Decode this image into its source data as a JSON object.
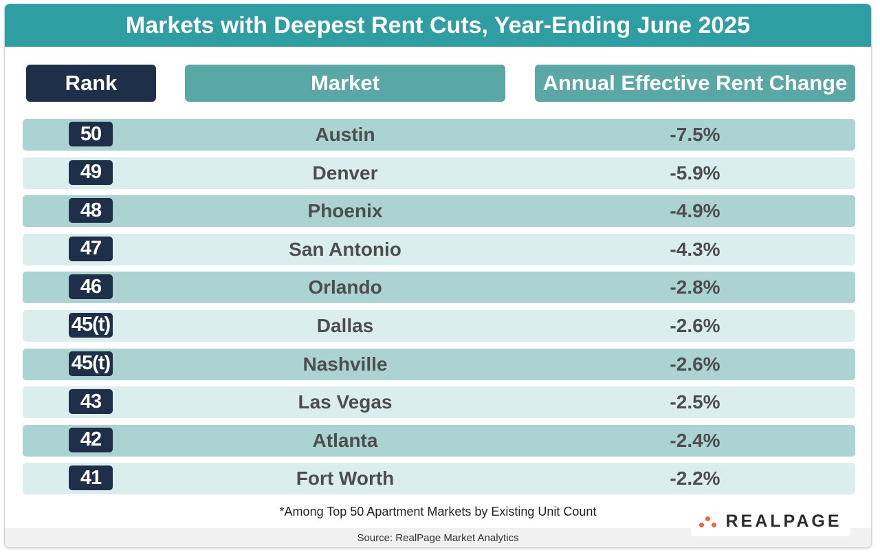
{
  "title": "Markets with Deepest Rent Cuts, Year-Ending June 2025",
  "headers": {
    "rank": "Rank",
    "market": "Market",
    "change": "Annual Effective Rent Change"
  },
  "chart_data": {
    "type": "table",
    "title": "Markets with Deepest Rent Cuts, Year-Ending June 2025",
    "columns": [
      "Rank",
      "Market",
      "Annual Effective Rent Change"
    ],
    "rows": [
      {
        "rank": "50",
        "market": "Austin",
        "change": "-7.5%"
      },
      {
        "rank": "49",
        "market": "Denver",
        "change": "-5.9%"
      },
      {
        "rank": "48",
        "market": "Phoenix",
        "change": "-4.9%"
      },
      {
        "rank": "47",
        "market": "San Antonio",
        "change": "-4.3%"
      },
      {
        "rank": "46",
        "market": "Orlando",
        "change": "-2.8%"
      },
      {
        "rank": "45(t)",
        "market": "Dallas",
        "change": "-2.6%"
      },
      {
        "rank": "45(t)",
        "market": "Nashville",
        "change": "-2.6%"
      },
      {
        "rank": "43",
        "market": "Las Vegas",
        "change": "-2.5%"
      },
      {
        "rank": "42",
        "market": "Atlanta",
        "change": "-2.4%"
      },
      {
        "rank": "41",
        "market": "Fort Worth",
        "change": "-2.2%"
      }
    ]
  },
  "footnote": "*Among Top 50 Apartment Markets by Existing Unit Count",
  "source": "Source: RealPage Market Analytics",
  "logo": {
    "text": "REALPAGE",
    "icon": "realpage-dots-icon"
  },
  "colors": {
    "title_bar": "#2f9ea3",
    "rank_header": "#1e2f4a",
    "column_header": "#5aa8a6",
    "row_dark": "#abd3d2",
    "row_light": "#daeeed",
    "logo_dots": "#f0643c"
  }
}
